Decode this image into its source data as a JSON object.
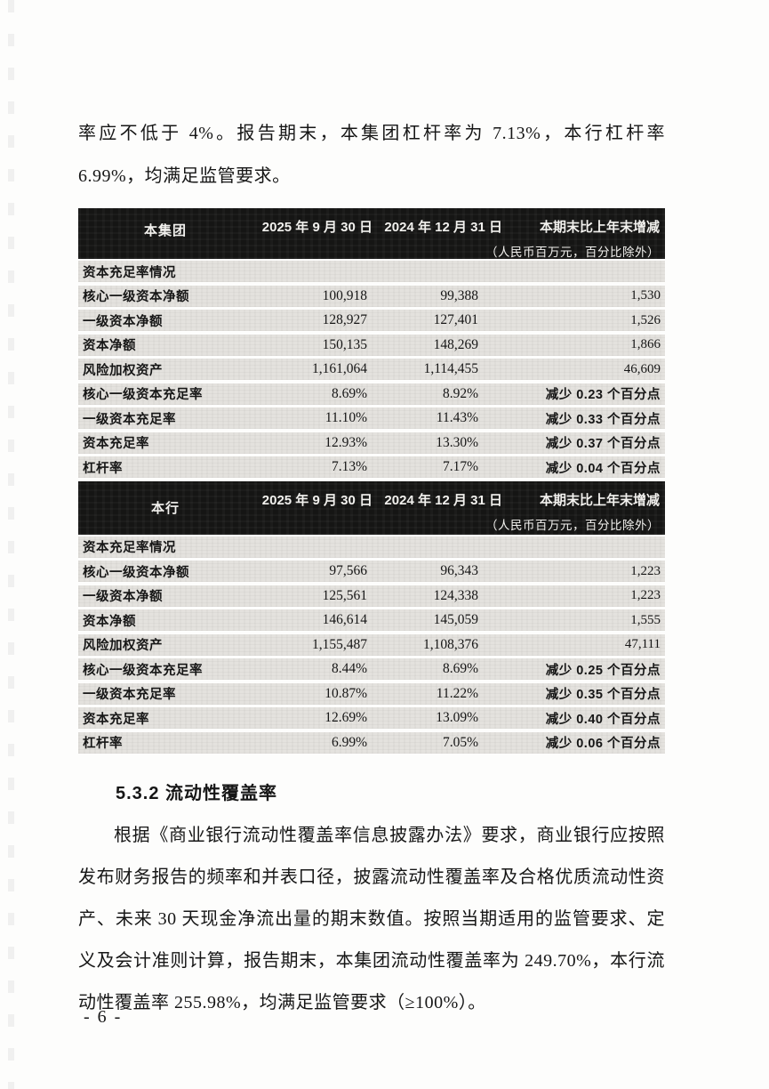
{
  "page": {
    "intro_paragraph": "率应不低于 4%。报告期末，本集团杠杆率为 7.13%，本行杠杆率 6.99%，均满足监管要求。",
    "section_heading": "5.3.2 流动性覆盖率",
    "body_paragraph": "根据《商业银行流动性覆盖率信息披露办法》要求，商业银行应按照发布财务报告的频率和并表口径，披露流动性覆盖率及合格优质流动性资产、未来 30 天现金净流出量的期末数值。按照当期适用的监管要求、定义及会计准则计算，报告期末，本集团流动性覆盖率为 249.70%，本行流动性覆盖率 255.98%，均满足监管要求（≥100%）。",
    "page_number": "- 6 -"
  },
  "colors": {
    "table_header_bg": "#151514",
    "table_row_bg": "#e4e2de",
    "text": "#161616"
  },
  "tables": [
    {
      "group": "本集团",
      "col_2025": "2025 年 9 月 30 日",
      "col_2024": "2024 年 12 月 31 日",
      "col_change": "本期末比上年末增减",
      "unit_note": "（人民币百万元，百分比除外）",
      "section_row": "资本充足率情况",
      "rows": [
        {
          "label": "核心一级资本净额",
          "v2025": "100,918",
          "v2024": "99,388",
          "change": "1,530"
        },
        {
          "label": "一级资本净额",
          "v2025": "128,927",
          "v2024": "127,401",
          "change": "1,526"
        },
        {
          "label": "资本净额",
          "v2025": "150,135",
          "v2024": "148,269",
          "change": "1,866"
        },
        {
          "label": "风险加权资产",
          "v2025": "1,161,064",
          "v2024": "1,114,455",
          "change": "46,609"
        },
        {
          "label": "核心一级资本充足率",
          "v2025": "8.69%",
          "v2024": "8.92%",
          "change": "减少 0.23 个百分点"
        },
        {
          "label": "一级资本充足率",
          "v2025": "11.10%",
          "v2024": "11.43%",
          "change": "减少 0.33 个百分点"
        },
        {
          "label": "资本充足率",
          "v2025": "12.93%",
          "v2024": "13.30%",
          "change": "减少 0.37 个百分点"
        },
        {
          "label": "杠杆率",
          "v2025": "7.13%",
          "v2024": "7.17%",
          "change": "减少 0.04 个百分点"
        }
      ]
    },
    {
      "group": "本行",
      "col_2025": "2025 年 9 月 30 日",
      "col_2024": "2024 年 12 月 31 日",
      "col_change": "本期末比上年末增减",
      "unit_note": "（人民币百万元，百分比除外）",
      "section_row": "资本充足率情况",
      "rows": [
        {
          "label": "核心一级资本净额",
          "v2025": "97,566",
          "v2024": "96,343",
          "change": "1,223"
        },
        {
          "label": "一级资本净额",
          "v2025": "125,561",
          "v2024": "124,338",
          "change": "1,223"
        },
        {
          "label": "资本净额",
          "v2025": "146,614",
          "v2024": "145,059",
          "change": "1,555"
        },
        {
          "label": "风险加权资产",
          "v2025": "1,155,487",
          "v2024": "1,108,376",
          "change": "47,111"
        },
        {
          "label": "核心一级资本充足率",
          "v2025": "8.44%",
          "v2024": "8.69%",
          "change": "减少 0.25 个百分点"
        },
        {
          "label": "一级资本充足率",
          "v2025": "10.87%",
          "v2024": "11.22%",
          "change": "减少 0.35 个百分点"
        },
        {
          "label": "资本充足率",
          "v2025": "12.69%",
          "v2024": "13.09%",
          "change": "减少 0.40 个百分点"
        },
        {
          "label": "杠杆率",
          "v2025": "6.99%",
          "v2024": "7.05%",
          "change": "减少 0.06 个百分点"
        }
      ]
    }
  ]
}
